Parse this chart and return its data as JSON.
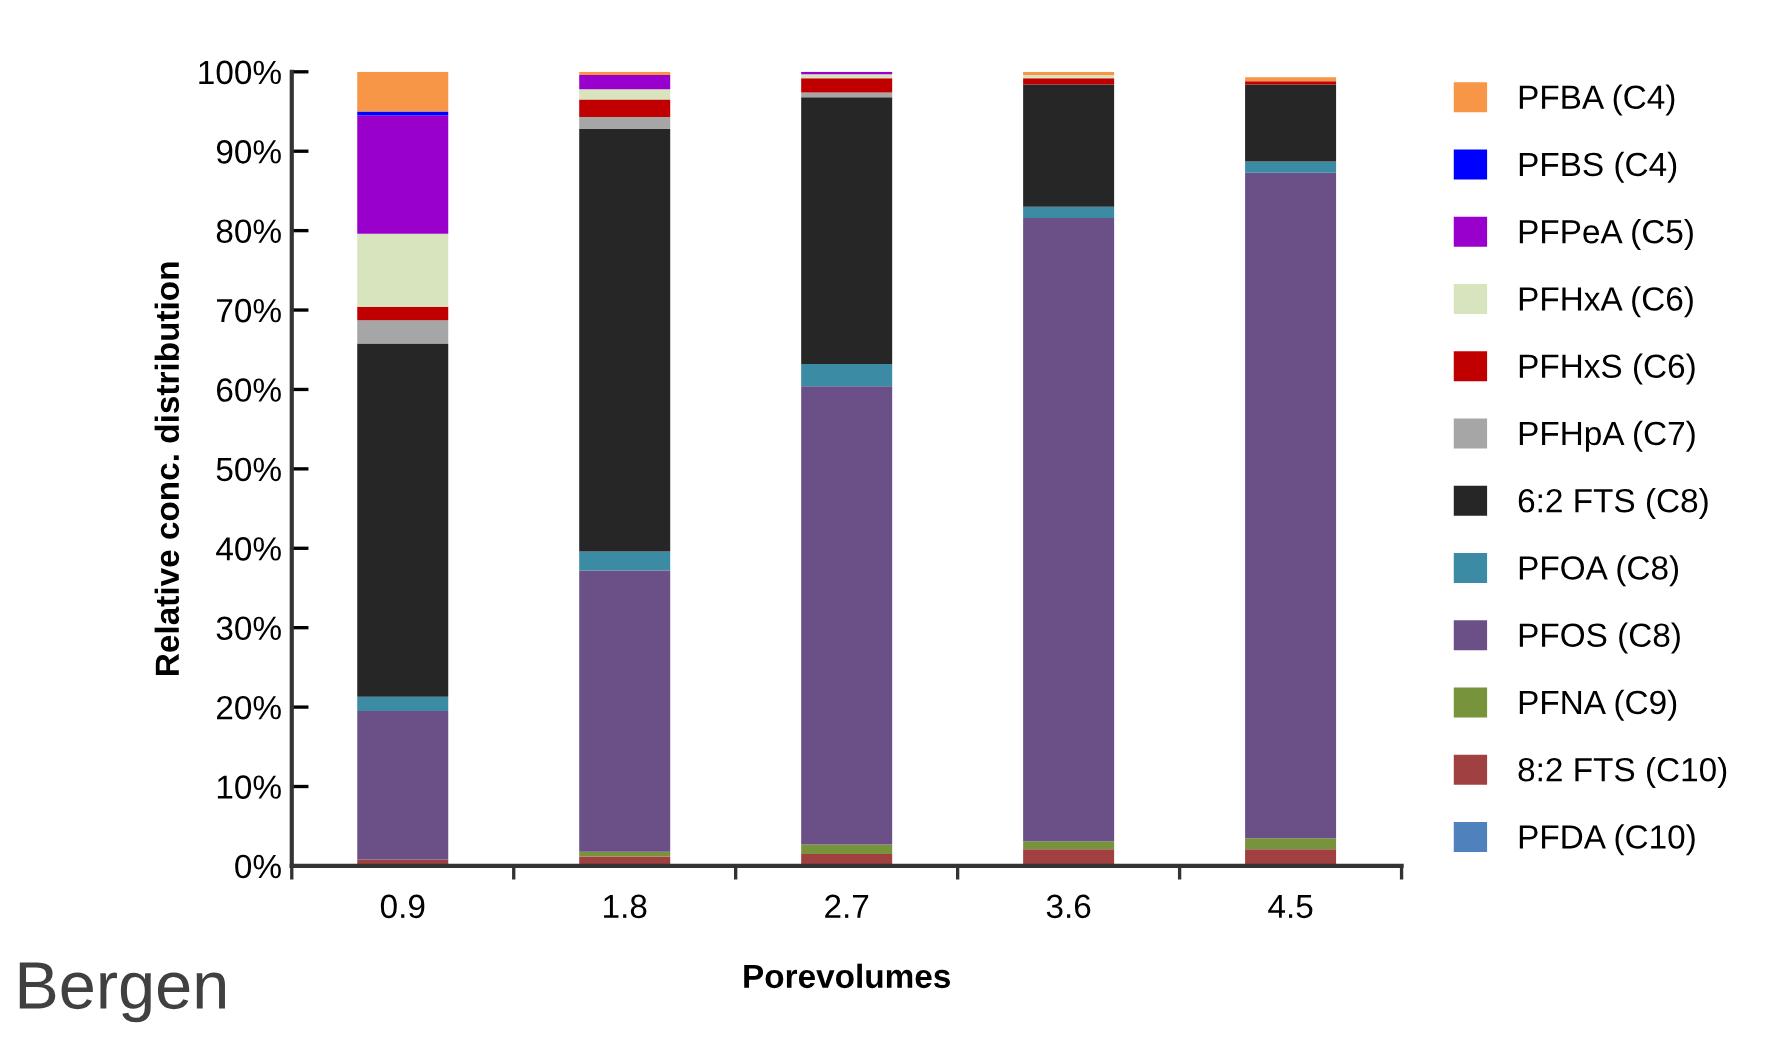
{
  "chart_data": {
    "type": "bar",
    "stacked": true,
    "xlabel": "Porevolumes",
    "ylabel": "Relative conc. distribution",
    "categories": [
      "0.9",
      "1.8",
      "2.7",
      "3.6",
      "4.5"
    ],
    "series": [
      {
        "name": "PFDA (C10)",
        "color": "#4f81bd",
        "values": [
          0,
          0,
          0,
          0,
          0
        ]
      },
      {
        "name": "8:2 FTS (C10)",
        "color": "#a04040",
        "values": [
          0.8,
          1.2,
          1.5,
          2.1,
          2.1
        ]
      },
      {
        "name": "PFNA (C9)",
        "color": "#77933c",
        "values": [
          0,
          0.6,
          1.2,
          1.0,
          1.4
        ]
      },
      {
        "name": "PFOS (C8)",
        "color": "#6a5087",
        "values": [
          18.7,
          35.4,
          57.7,
          78.5,
          83.8
        ]
      },
      {
        "name": "PFOA (C8)",
        "color": "#3a8ba3",
        "values": [
          1.8,
          2.4,
          2.8,
          1.4,
          1.4
        ]
      },
      {
        "name": "6:2 FTS (C8)",
        "color": "#262626",
        "values": [
          44.5,
          53.2,
          33.6,
          15.4,
          9.7
        ]
      },
      {
        "name": "PFHpA (C7)",
        "color": "#a6a6a6",
        "values": [
          2.9,
          1.5,
          0.6,
          0,
          null
        ]
      },
      {
        "name": "PFHxS (C6)",
        "color": "#c00000",
        "values": [
          1.7,
          2.2,
          1.8,
          0.8,
          0.4
        ]
      },
      {
        "name": "PFHxA (C6)",
        "color": "#d7e4bd",
        "values": [
          9.2,
          1.3,
          0.5,
          0.4,
          null
        ]
      },
      {
        "name": "PFPeA (C5)",
        "color": "#9900cc",
        "values": [
          14.9,
          1.8,
          0.3,
          0,
          0
        ]
      },
      {
        "name": "PFBS (C4)",
        "color": "#0000ff",
        "values": [
          0.5,
          0,
          0,
          0,
          0
        ]
      },
      {
        "name": "PFBA (C4)",
        "color": "#f79646",
        "values": [
          5.0,
          0.4,
          0,
          0.4,
          0.5
        ]
      }
    ],
    "ylim": [
      0,
      100
    ],
    "yticks": [
      {
        "value": 0,
        "label": "0%"
      },
      {
        "value": 10,
        "label": "10%"
      },
      {
        "value": 20,
        "label": "20%"
      },
      {
        "value": 30,
        "label": "30%"
      },
      {
        "value": 40,
        "label": "40%"
      },
      {
        "value": 50,
        "label": "50%"
      },
      {
        "value": 60,
        "label": "60%"
      },
      {
        "value": 70,
        "label": "70%"
      },
      {
        "value": 80,
        "label": "80%"
      },
      {
        "value": 90,
        "label": "90%"
      },
      {
        "value": 100,
        "label": "100%"
      }
    ],
    "legend": "right",
    "grid": false,
    "annotations": [
      "Bergen"
    ]
  }
}
